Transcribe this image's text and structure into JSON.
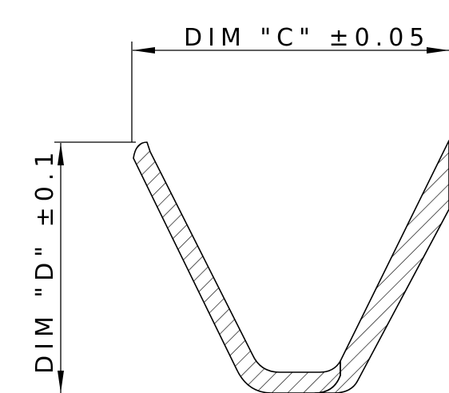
{
  "dimensions": {
    "c": {
      "label": "DIM \"C\" ±0.05"
    },
    "d": {
      "label": "DIM \"D\" ±0.1"
    }
  },
  "colors": {
    "ink": "#000000",
    "background": "#ffffff"
  }
}
